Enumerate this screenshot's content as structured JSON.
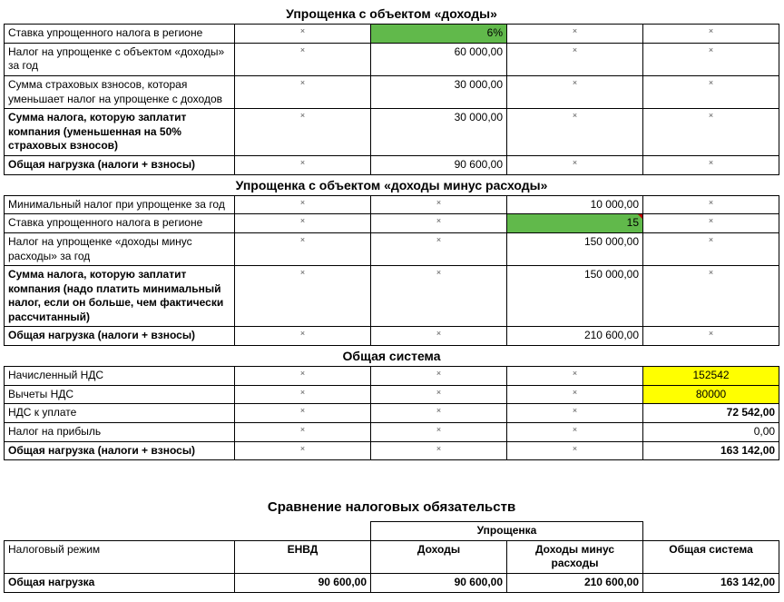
{
  "colors": {
    "green": "#61b94b",
    "yellow": "#ffff00",
    "border": "#000000",
    "bg": "#ffffff"
  },
  "s1": {
    "title": "Упрощенка с объектом «доходы»",
    "rows": [
      {
        "label": "Ставка упрощенного налога в регионе",
        "bold": false,
        "c": [
          "x",
          "6%",
          "x",
          "x"
        ],
        "hl": 1,
        "hlColor": "green"
      },
      {
        "label": "Налог на упрощенке с объектом «доходы» за год",
        "bold": false,
        "c": [
          "x",
          "60 000,00",
          "x",
          "x"
        ]
      },
      {
        "label": "Сумма страховых взносов, которая уменьшает налог на упрощенке с доходов",
        "bold": false,
        "c": [
          "x",
          "30 000,00",
          "x",
          "x"
        ]
      },
      {
        "label": "Сумма налога, которую заплатит компания (уменьшенная на 50% страховых взносов)",
        "bold": true,
        "c": [
          "x",
          "30 000,00",
          "x",
          "x"
        ]
      },
      {
        "label": "Общая нагрузка (налоги + взносы)",
        "bold": true,
        "c": [
          "x",
          "90 600,00",
          "x",
          "x"
        ]
      }
    ]
  },
  "s2": {
    "title": "Упрощенка с объектом «доходы минус расходы»",
    "rows": [
      {
        "label": "Минимальный налог при упрощенке за год",
        "bold": false,
        "c": [
          "x",
          "x",
          "10 000,00",
          "x"
        ]
      },
      {
        "label": "Ставка упрощенного налога в регионе",
        "bold": false,
        "c": [
          "x",
          "x",
          "15",
          "x"
        ],
        "hl": 2,
        "hlColor": "green",
        "ind": true
      },
      {
        "label": "Налог на упрощенке «доходы минус расходы» за год",
        "bold": false,
        "c": [
          "x",
          "x",
          "150 000,00",
          "x"
        ]
      },
      {
        "label": "Сумма налога, которую заплатит компания (надо платить минимальный налог, если он больше, чем фактически рассчитанный)",
        "bold": true,
        "c": [
          "x",
          "x",
          "150 000,00",
          "x"
        ]
      },
      {
        "label": "Общая нагрузка (налоги + взносы)",
        "bold": true,
        "c": [
          "x",
          "x",
          "210 600,00",
          "x"
        ]
      }
    ]
  },
  "s3": {
    "title": "Общая система",
    "rows": [
      {
        "label": "Начисленный НДС",
        "bold": false,
        "c": [
          "x",
          "x",
          "x",
          "152542"
        ],
        "hl": 3,
        "hlColor": "yellow",
        "align": "center"
      },
      {
        "label": "Вычеты НДС",
        "bold": false,
        "c": [
          "x",
          "x",
          "x",
          "80000"
        ],
        "hl": 3,
        "hlColor": "yellow",
        "align": "center"
      },
      {
        "label": "НДС к уплате",
        "bold": false,
        "c": [
          "x",
          "x",
          "x",
          "72 542,00"
        ],
        "boldVal": true
      },
      {
        "label": "Налог на прибыль",
        "bold": false,
        "c": [
          "x",
          "x",
          "x",
          "0,00"
        ]
      },
      {
        "label": "Общая нагрузка (налоги + взносы)",
        "bold": true,
        "c": [
          "x",
          "x",
          "x",
          "163 142,00"
        ],
        "boldVal": true
      }
    ]
  },
  "summary": {
    "title": "Сравнение налоговых обязательств",
    "upr_group": "Упрощенка",
    "row_modes_label": "Налоговый режим",
    "cols": [
      "ЕНВД",
      "Доходы",
      "Доходы минус расходы",
      "Общая система"
    ],
    "total_label": "Общая нагрузка",
    "totals": [
      "90 600,00",
      "90 600,00",
      "210 600,00",
      "163 142,00"
    ]
  }
}
